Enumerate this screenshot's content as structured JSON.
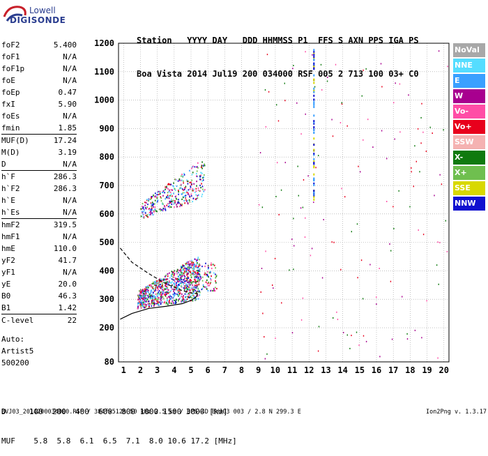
{
  "logo": {
    "line1": "Lowell",
    "line2": "DIGISONDE"
  },
  "header": {
    "line1": "Station   YYYY DAY   DDD HHMMSS P1  FFS S AXN PPS IGA PS",
    "line2": "Boa Vista 2014 Jul19 200 034000 RSF 005 2 713 100 03+ C0"
  },
  "params": [
    {
      "k": "foF2",
      "v": "5.400",
      "sep": false
    },
    {
      "k": "foF1",
      "v": "N/A",
      "sep": false
    },
    {
      "k": "foF1p",
      "v": "N/A",
      "sep": false
    },
    {
      "k": "foE",
      "v": "N/A",
      "sep": false
    },
    {
      "k": "foEp",
      "v": "0.47",
      "sep": false
    },
    {
      "k": "fxI",
      "v": "5.90",
      "sep": false
    },
    {
      "k": "foEs",
      "v": "N/A",
      "sep": false
    },
    {
      "k": "fmin",
      "v": "1.85",
      "sep": false
    },
    {
      "k": "MUF(D)",
      "v": "17.24",
      "sep": true
    },
    {
      "k": "M(D)",
      "v": "3.19",
      "sep": false
    },
    {
      "k": "D",
      "v": "N/A",
      "sep": false
    },
    {
      "k": "h`F",
      "v": "286.3",
      "sep": true
    },
    {
      "k": "h`F2",
      "v": "286.3",
      "sep": false
    },
    {
      "k": "h`E",
      "v": "N/A",
      "sep": false
    },
    {
      "k": "h`Es",
      "v": "N/A",
      "sep": false
    },
    {
      "k": "hmF2",
      "v": "319.5",
      "sep": true
    },
    {
      "k": "hmF1",
      "v": "N/A",
      "sep": false
    },
    {
      "k": "hmE",
      "v": "110.0",
      "sep": false
    },
    {
      "k": "yF2",
      "v": "41.7",
      "sep": false
    },
    {
      "k": "yF1",
      "v": "N/A",
      "sep": false
    },
    {
      "k": "yE",
      "v": "20.0",
      "sep": false
    },
    {
      "k": "B0",
      "v": "46.3",
      "sep": false
    },
    {
      "k": "B1",
      "v": "1.42",
      "sep": false
    },
    {
      "k": "C-level",
      "v": "22",
      "sep": true
    }
  ],
  "auto": [
    "Auto:",
    "Artist5",
    "500200"
  ],
  "bottom": {
    "d_row": "D     100  200  400  600  800 1000 1500 3000 [km]",
    "muf_row": "MUF    5.8  5.8  6.1  6.5  7.1  8.0 10.6 17.2 [MHz]"
  },
  "footer": {
    "left": "BVJ03_2014200034000.RSF / 384fx512h 50 kHz 2.5 km / DPS-4D BVJ03 003 / 2.8 N 299.3 E",
    "right": "Ion2Png v. 1.3.17"
  },
  "legend": [
    {
      "label": "NoVal",
      "color": "#a8a8a8"
    },
    {
      "label": "NNE",
      "color": "#55ddff"
    },
    {
      "label": "E",
      "color": "#3aa0ff"
    },
    {
      "label": "W",
      "color": "#a8008f"
    },
    {
      "label": "Vo-",
      "color": "#ff4da6"
    },
    {
      "label": "Vo+",
      "color": "#e8001c"
    },
    {
      "label": "SSW",
      "color": "#f5b2b2"
    },
    {
      "label": "X-",
      "color": "#0f7a0f"
    },
    {
      "label": "X+",
      "color": "#6fbf4f"
    },
    {
      "label": "SSE",
      "color": "#d8d800"
    },
    {
      "label": "NNW",
      "color": "#1010d0"
    }
  ],
  "chart_data": {
    "type": "scatter",
    "x_ticks": [
      "1",
      "2",
      "3",
      "4",
      "5",
      "6",
      "7",
      "8",
      "9",
      "10",
      "11",
      "12",
      "13",
      "14",
      "15",
      "16",
      "17",
      "18",
      "19",
      "20"
    ],
    "y_ticks": [
      "80",
      "200",
      "300",
      "400",
      "500",
      "600",
      "700",
      "800",
      "900",
      "1000",
      "1100",
      "1200"
    ],
    "xlim": [
      0.7,
      20.3
    ],
    "ylim": [
      80,
      1200
    ],
    "grid": true,
    "legend_placement": "right",
    "clusters": [
      {
        "name": "F2 O-trace",
        "x_range": [
          1.8,
          5.5
        ],
        "y_range": [
          260,
          460
        ]
      },
      {
        "name": "F2 multihop",
        "x_range": [
          2.0,
          5.8
        ],
        "y_range": [
          580,
          800
        ]
      },
      {
        "name": "X trace",
        "x_range": [
          4.8,
          6.5
        ],
        "y_range": [
          330,
          430
        ]
      }
    ],
    "profile_curves": [
      {
        "name": "profile-solid",
        "points": [
          [
            0.8,
            230
          ],
          [
            1.5,
            250
          ],
          [
            2.5,
            268
          ],
          [
            3.5,
            275
          ],
          [
            4.5,
            285
          ],
          [
            5.0,
            296
          ],
          [
            5.3,
            308
          ],
          [
            5.4,
            320
          ]
        ]
      },
      {
        "name": "profile-dashed",
        "points": [
          [
            0.8,
            480
          ],
          [
            1.5,
            430
          ],
          [
            2.5,
            390
          ],
          [
            3.5,
            355
          ],
          [
            4.5,
            330
          ],
          [
            5.0,
            322
          ],
          [
            5.4,
            320
          ]
        ]
      }
    ]
  }
}
